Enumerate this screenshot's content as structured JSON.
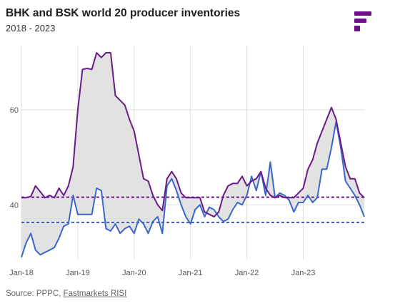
{
  "header": {
    "title": "BHK and BSK world 20 producer inventories",
    "subtitle": "2018 - 2023"
  },
  "brand": {
    "icon": "fastmarkets-logo-icon",
    "color": "#6e0f8e"
  },
  "footer": {
    "source_prefix": "Source: PPPC, ",
    "source_link": "Fastmarkets RISI"
  },
  "colors": {
    "series_1": "#6a1b8a",
    "series_2": "#3b67c9",
    "fill": "#e2e2e2",
    "grid": "#dedede"
  },
  "chart_data": {
    "type": "line",
    "title": "BHK and BSK world 20 producer inventories",
    "subtitle": "2018 - 2023",
    "xlabel": "",
    "ylabel": "",
    "x_tick_labels": [
      "Jan-18",
      "Jan-19",
      "Jan-20",
      "Jan-21",
      "Jan-22",
      "Jan-23"
    ],
    "y_tick_labels": [
      "40",
      "60"
    ],
    "y_ticks": [
      40,
      60
    ],
    "ylim": [
      28.5,
      73.5
    ],
    "grid": "horizontal",
    "legend": "none",
    "x_start": "Jan-18",
    "x_frequency": "monthly",
    "series": [
      {
        "values": [
          41.5,
          41.5,
          41.8,
          44.0,
          42.8,
          41.5,
          42.0,
          41.5,
          43.5,
          42.0,
          44.0,
          48.0,
          60.0,
          68.5,
          68.7,
          68.5,
          72.0,
          71.0,
          72.0,
          72.0,
          63.0,
          62.0,
          61.0,
          58.0,
          55.5,
          50.5,
          45.5,
          45.0,
          42.0,
          40.0,
          38.8,
          45.5,
          47.0,
          45.5,
          42.5,
          41.5,
          41.5,
          41.5,
          41.5,
          38.5,
          38.0,
          37.5,
          38.5,
          42.0,
          44.0,
          44.5,
          44.5,
          46.0,
          44.0,
          45.0,
          45.5,
          47.0,
          43.5,
          42.0,
          41.5,
          42.0,
          41.5,
          41.5,
          41.5,
          42.5,
          43.5,
          47.5,
          49.5,
          53.0,
          55.5,
          58.0,
          60.5,
          58.0,
          53.0,
          48.0,
          45.5,
          45.5,
          42.5,
          41.5
        ],
        "dashed_reference": 41.6
      },
      {
        "values": [
          29.0,
          32.0,
          34.0,
          30.5,
          29.5,
          30.0,
          30.5,
          31.0,
          33.0,
          35.5,
          36.0,
          42.0,
          38.0,
          38.0,
          38.0,
          38.0,
          43.5,
          43.0,
          35.0,
          34.5,
          36.0,
          34.0,
          35.0,
          35.5,
          34.0,
          37.0,
          36.0,
          34.0,
          36.5,
          37.5,
          34.0,
          44.0,
          45.5,
          43.0,
          40.0,
          37.5,
          36.0,
          39.0,
          40.0,
          37.5,
          39.5,
          39.0,
          37.5,
          36.5,
          37.0,
          39.0,
          40.5,
          40.0,
          42.0,
          46.0,
          43.0,
          47.0,
          42.0,
          49.0,
          41.5,
          42.5,
          42.0,
          41.0,
          38.5,
          40.5,
          40.5,
          42.0,
          40.5,
          41.5,
          47.5,
          47.5,
          52.0,
          57.5,
          52.0,
          45.0,
          43.5,
          42.0,
          40.0,
          37.5
        ],
        "dashed_reference": 36.3
      }
    ]
  }
}
